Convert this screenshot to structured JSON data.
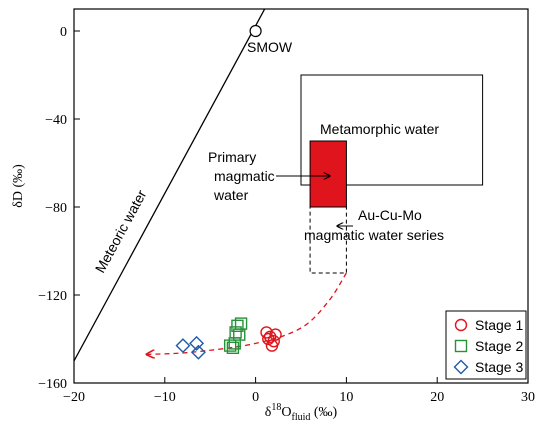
{
  "chart_data": {
    "type": "scatter",
    "xlabel": "δ18Ofluid (‰)",
    "xlabel_parts": {
      "prefix": "δ",
      "sup": "18",
      "base": "O",
      "sub": "fluid",
      "suffix": " (‰)"
    },
    "ylabel": "δD (‰)",
    "xlim": [
      -20,
      30
    ],
    "ylim": [
      -160,
      10
    ],
    "x_ticks": [
      -20,
      -10,
      0,
      10,
      20,
      30
    ],
    "x_tick_labels": [
      "−20",
      "−10",
      "0",
      "10",
      "20",
      "30"
    ],
    "y_ticks": [
      0,
      -40,
      -80,
      -120,
      -160
    ],
    "y_tick_labels": [
      "0",
      "−40",
      "−80",
      "−120",
      "−160"
    ],
    "grid": false,
    "legend_position": "bottom-right",
    "meteoric_water_line": {
      "label": "Meteoric water",
      "points": [
        [
          -20,
          -150
        ],
        [
          1,
          10
        ]
      ]
    },
    "smow": {
      "label": "SMOW",
      "x": 0,
      "y": 0
    },
    "metamorphic_water": {
      "label": "Metamorphic water",
      "x": [
        5,
        25
      ],
      "y": [
        -70,
        -20
      ]
    },
    "primary_magmatic_water": {
      "label_lines": [
        "Primary",
        "magmatic",
        "water"
      ],
      "x": [
        6,
        10
      ],
      "y": [
        -80,
        -50
      ],
      "color": "#e0141c"
    },
    "au_cu_mo_series": {
      "label_lines": [
        "Au-Cu-Mo",
        "magmatic water series"
      ],
      "x": [
        6,
        10
      ],
      "y": [
        -110,
        -80
      ]
    },
    "evolution_trend": {
      "points": [
        [
          10,
          -110
        ],
        [
          8,
          -123
        ],
        [
          5,
          -135
        ],
        [
          0,
          -142
        ],
        [
          -7,
          -146
        ],
        [
          -12,
          -147
        ]
      ],
      "color": "#e0141c"
    },
    "series": [
      {
        "name": "Stage 1",
        "marker": "circle",
        "color": "#e0141c",
        "points": [
          [
            1.2,
            -137
          ],
          [
            1.6,
            -139
          ],
          [
            2.0,
            -141
          ],
          [
            1.8,
            -143
          ],
          [
            1.4,
            -140
          ],
          [
            2.2,
            -138
          ]
        ]
      },
      {
        "name": "Stage 2",
        "marker": "square",
        "color": "#27913a",
        "points": [
          [
            -2.0,
            -134
          ],
          [
            -1.6,
            -133
          ],
          [
            -2.2,
            -137
          ],
          [
            -1.8,
            -138
          ],
          [
            -2.3,
            -142
          ],
          [
            -2.8,
            -143
          ],
          [
            -2.5,
            -144
          ]
        ]
      },
      {
        "name": "Stage 3",
        "marker": "diamond",
        "color": "#1e5ba8",
        "points": [
          [
            -8.0,
            -143
          ],
          [
            -6.5,
            -142
          ],
          [
            -6.3,
            -146
          ]
        ]
      }
    ]
  }
}
